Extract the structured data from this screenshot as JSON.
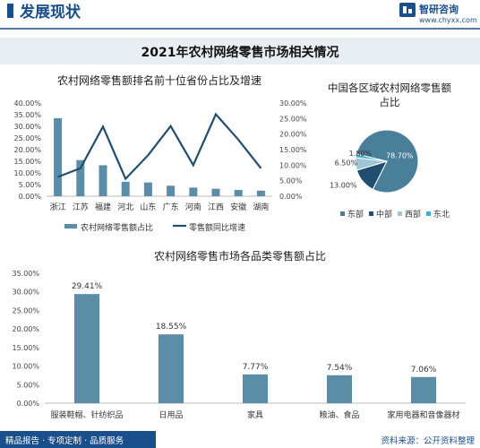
{
  "header": {
    "section_title": "发展现状",
    "brand_name": "智研咨询",
    "brand_url": "www.chyxx.com"
  },
  "banner": {
    "title": "2021年农村网络零售市场相关情况"
  },
  "footer": {
    "left_text": "精品报告 · 专项定制 · 品质服务",
    "right_text": "资料来源：公开资料整理"
  },
  "colors": {
    "accent_blue": "#1a4f8b",
    "bar": "#5b8da6",
    "line": "#1f4e6e",
    "pie_east": "#4a7f9a",
    "pie_central": "#1f4e6e",
    "pie_west": "#9fc6d6",
    "pie_northeast": "#3cb0d8",
    "banner_bg": "#e9eef4"
  },
  "chart_data": [
    {
      "id": "top10",
      "type": "bar+line",
      "title": "农村网络零售额排名前十位省份占比及增速",
      "categories": [
        "浙江",
        "江苏",
        "福建",
        "河北",
        "山东",
        "广东",
        "河南",
        "江西",
        "安徽",
        "湖南"
      ],
      "series": [
        {
          "name": "农村网络零售额占比",
          "type": "bar",
          "axis": "left",
          "values": [
            33.5,
            15.5,
            13.3,
            6.2,
            5.9,
            4.5,
            3.7,
            3.2,
            2.7,
            2.4
          ]
        },
        {
          "name": "零售额同比增速",
          "type": "line",
          "axis": "right",
          "values": [
            6.2,
            9.0,
            22.4,
            5.6,
            13.2,
            22.6,
            10.0,
            26.4,
            18.2,
            9.0
          ]
        }
      ],
      "left_axis": {
        "min": 0,
        "max": 40,
        "step": 5,
        "ticks": [
          "0.00%",
          "5.00%",
          "10.00%",
          "15.00%",
          "20.00%",
          "25.00%",
          "30.00%",
          "35.00%",
          "40.00%"
        ]
      },
      "right_axis": {
        "min": 0,
        "max": 30,
        "step": 5,
        "ticks": [
          "0.00%",
          "5.00%",
          "10.00%",
          "15.00%",
          "20.00%",
          "25.00%",
          "30.00%"
        ]
      },
      "legend": {
        "position": "bottom",
        "labels": [
          "农村网络零售额占比",
          "零售额同比增速"
        ]
      }
    },
    {
      "id": "regions",
      "type": "pie",
      "title_lines": [
        "中国各区域农村网络零售额",
        "占比"
      ],
      "slices": [
        {
          "name": "东部",
          "value": 78.7,
          "label": "78.70%"
        },
        {
          "name": "中部",
          "value": 13.0,
          "label": "13.00%"
        },
        {
          "name": "西部",
          "value": 6.5,
          "label": "6.50%"
        },
        {
          "name": "东北",
          "value": 1.8,
          "label": "1.80%"
        }
      ],
      "legend": {
        "position": "bottom"
      }
    },
    {
      "id": "categories",
      "type": "bar",
      "title": "农村网络零售市场各品类零售额占比",
      "categories": [
        "服装鞋帽、针纺织品",
        "日用品",
        "家具",
        "粮油、食品",
        "家用电器和音像器材"
      ],
      "values": [
        29.41,
        18.55,
        7.77,
        7.54,
        7.06
      ],
      "value_labels": [
        "29.41%",
        "18.55%",
        "7.77%",
        "7.54%",
        "7.06%"
      ],
      "axis": {
        "min": 0,
        "max": 35,
        "step": 5,
        "ticks": [
          "0.00%",
          "5.00%",
          "10.00%",
          "15.00%",
          "20.00%",
          "25.00%",
          "30.00%",
          "35.00%"
        ]
      },
      "grid": false
    }
  ]
}
